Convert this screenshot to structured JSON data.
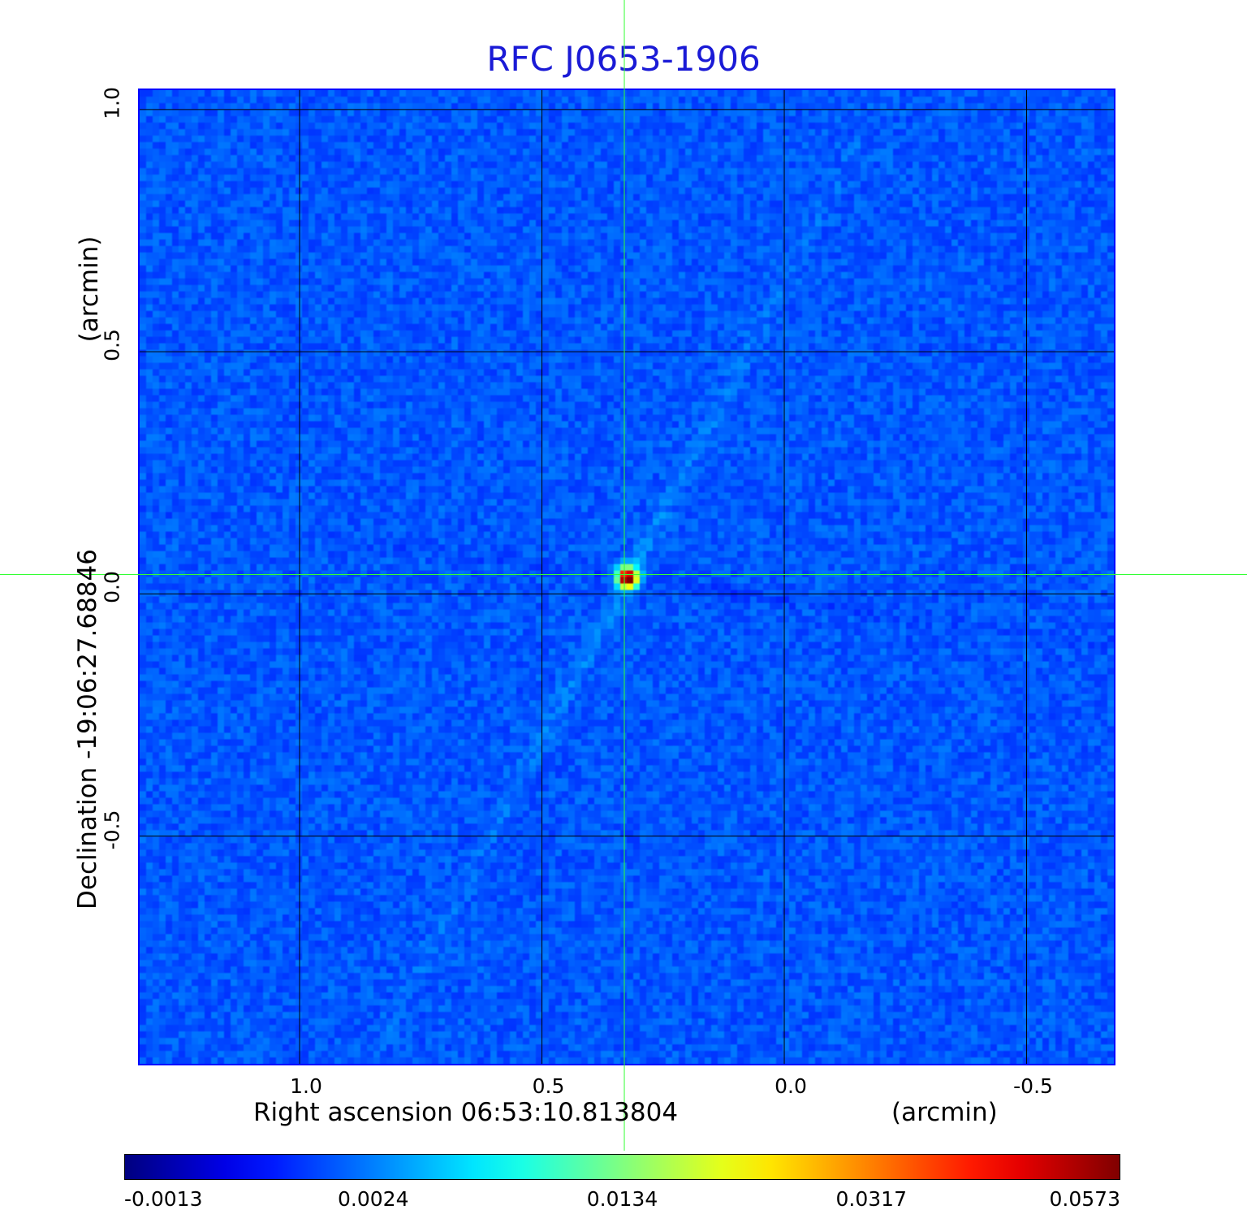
{
  "chart_data": {
    "type": "heatmap",
    "title": "RFC J0653-1906",
    "xlabel": "Right ascension  06:53:10.813804",
    "xunit": "(arcmin)",
    "ylabel": "Declination  -19:06:27.68846",
    "yunit": "(arcmin)",
    "xlim": [
      1.33,
      -0.68
    ],
    "ylim": [
      -0.97,
      1.04
    ],
    "x_ticks": [
      1.0,
      0.5,
      0.0,
      -0.5
    ],
    "x_tick_labels": [
      "1.0",
      "0.5",
      "0.0",
      "-0.5"
    ],
    "y_ticks": [
      1.0,
      0.5,
      0.0,
      -0.5
    ],
    "y_tick_labels": [
      "1.0",
      "0.5",
      "0.0",
      "-0.5"
    ],
    "grid": true,
    "crosshair": [
      0.33,
      0.04
    ],
    "source_peak": {
      "x": 0.33,
      "y": 0.04,
      "value": 0.0573
    },
    "colorbar": {
      "colormap": "jet",
      "position": "bottom",
      "tick_labels": [
        "-0.0013",
        "0.0024",
        "0.0134",
        "0.0317",
        "0.0573"
      ]
    },
    "colors": {
      "title": "#1a1ad6",
      "frame": "#0000ff",
      "grid": "#000000",
      "crosshair": "#33ff33"
    }
  }
}
